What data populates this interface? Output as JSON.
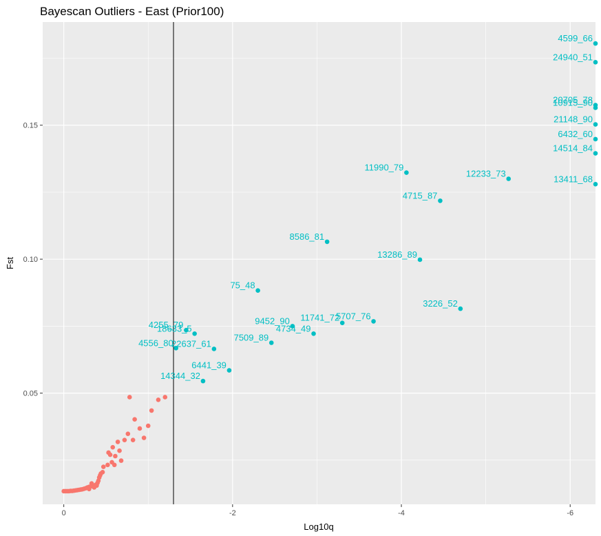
{
  "chart_data": {
    "type": "scatter",
    "title": "Bayescan Outliers - East (Prior100)",
    "xlabel": "Log10q",
    "ylabel": "Fst",
    "xlim": [
      0.25,
      -6.3
    ],
    "ylim": [
      0.0085,
      0.1885
    ],
    "x_reversed": true,
    "x_ticks": [
      0,
      -2,
      -4,
      -6
    ],
    "x_tick_labels": [
      "0",
      "-2",
      "-4",
      "-6"
    ],
    "y_ticks": [
      0.05,
      0.1,
      0.15
    ],
    "y_tick_labels": [
      "0.05",
      "0.10",
      "0.15"
    ],
    "grid": true,
    "vline_x": -1.3,
    "colors": {
      "panel": "#ebebeb",
      "grid": "#ffffff",
      "non_outlier": "#f8766d",
      "outlier": "#00bfc4",
      "vline": "#000000"
    },
    "non_outliers": [
      {
        "x": -0.78,
        "y": 0.0485
      },
      {
        "x": -1.12,
        "y": 0.0475
      },
      {
        "x": -1.2,
        "y": 0.0485
      },
      {
        "x": -1.04,
        "y": 0.0435
      },
      {
        "x": -0.84,
        "y": 0.0402
      },
      {
        "x": -1.0,
        "y": 0.0378
      },
      {
        "x": -0.9,
        "y": 0.0368
      },
      {
        "x": -0.76,
        "y": 0.0348
      },
      {
        "x": -0.82,
        "y": 0.0325
      },
      {
        "x": -0.72,
        "y": 0.0325
      },
      {
        "x": -0.95,
        "y": 0.0333
      },
      {
        "x": -0.64,
        "y": 0.0318
      },
      {
        "x": -0.58,
        "y": 0.0298
      },
      {
        "x": -0.66,
        "y": 0.0285
      },
      {
        "x": -0.53,
        "y": 0.0278
      },
      {
        "x": -0.55,
        "y": 0.027
      },
      {
        "x": -0.61,
        "y": 0.0265
      },
      {
        "x": -0.57,
        "y": 0.0242
      },
      {
        "x": -0.68,
        "y": 0.0248
      },
      {
        "x": -0.6,
        "y": 0.0232
      },
      {
        "x": -0.52,
        "y": 0.0232
      },
      {
        "x": -0.47,
        "y": 0.0225
      },
      {
        "x": -0.46,
        "y": 0.0205
      },
      {
        "x": -0.44,
        "y": 0.02
      },
      {
        "x": -0.43,
        "y": 0.0193
      },
      {
        "x": -0.42,
        "y": 0.0185
      },
      {
        "x": -0.41,
        "y": 0.0173
      },
      {
        "x": -0.4,
        "y": 0.0165
      },
      {
        "x": -0.38,
        "y": 0.0158
      },
      {
        "x": -0.35,
        "y": 0.0155
      },
      {
        "x": -0.32,
        "y": 0.0152
      },
      {
        "x": -0.3,
        "y": 0.015
      },
      {
        "x": -0.28,
        "y": 0.0148
      },
      {
        "x": -0.26,
        "y": 0.0145
      },
      {
        "x": -0.24,
        "y": 0.0143
      },
      {
        "x": -0.22,
        "y": 0.0141
      },
      {
        "x": -0.2,
        "y": 0.014
      },
      {
        "x": -0.18,
        "y": 0.0139
      },
      {
        "x": -0.16,
        "y": 0.0138
      },
      {
        "x": -0.14,
        "y": 0.0137
      },
      {
        "x": -0.12,
        "y": 0.0136
      },
      {
        "x": -0.1,
        "y": 0.0135
      },
      {
        "x": -0.08,
        "y": 0.0135
      },
      {
        "x": -0.06,
        "y": 0.0134
      },
      {
        "x": -0.04,
        "y": 0.0134
      },
      {
        "x": -0.02,
        "y": 0.0134
      },
      {
        "x": 0.0,
        "y": 0.0134
      },
      {
        "x": -0.3,
        "y": 0.0142
      },
      {
        "x": -0.36,
        "y": 0.0148
      },
      {
        "x": -0.33,
        "y": 0.0163
      },
      {
        "x": -0.39,
        "y": 0.0155
      }
    ],
    "outliers": [
      {
        "label": "4599_66",
        "x": -6.3,
        "y": 0.1805
      },
      {
        "label": "24940_51",
        "x": -6.3,
        "y": 0.1735
      },
      {
        "label": "20705_78",
        "x": -6.3,
        "y": 0.1575
      },
      {
        "label": "10915_90",
        "x": -6.3,
        "y": 0.1565
      },
      {
        "label": "21148_90",
        "x": -6.3,
        "y": 0.1503
      },
      {
        "label": "6432_60",
        "x": -6.3,
        "y": 0.1448
      },
      {
        "label": "14514_84",
        "x": -6.3,
        "y": 0.1395
      },
      {
        "label": "13411_68",
        "x": -6.3,
        "y": 0.128
      },
      {
        "label": "11990_79",
        "x": -4.06,
        "y": 0.1323
      },
      {
        "label": "12233_73",
        "x": -5.27,
        "y": 0.13
      },
      {
        "label": "4715_87",
        "x": -4.46,
        "y": 0.1218
      },
      {
        "label": "8586_81",
        "x": -3.12,
        "y": 0.1065
      },
      {
        "label": "13286_89",
        "x": -4.22,
        "y": 0.0998
      },
      {
        "label": "75_48",
        "x": -2.3,
        "y": 0.0883
      },
      {
        "label": "3226_52",
        "x": -4.7,
        "y": 0.0815
      },
      {
        "label": "5707_76",
        "x": -3.67,
        "y": 0.0768
      },
      {
        "label": "11741_72",
        "x": -3.3,
        "y": 0.0762
      },
      {
        "label": "9452_90",
        "x": -2.71,
        "y": 0.075
      },
      {
        "label": "4734_49",
        "x": -2.96,
        "y": 0.0722
      },
      {
        "label": "4255_79",
        "x": -1.45,
        "y": 0.0735
      },
      {
        "label": "18633_5",
        "x": -1.55,
        "y": 0.0722
      },
      {
        "label": "7509_89",
        "x": -2.46,
        "y": 0.0688
      },
      {
        "label": "4556_80",
        "x": -1.33,
        "y": 0.0668
      },
      {
        "label": "22637_61",
        "x": -1.78,
        "y": 0.0665
      },
      {
        "label": "6441_39",
        "x": -1.96,
        "y": 0.0585
      },
      {
        "label": "14344_32",
        "x": -1.65,
        "y": 0.0545
      }
    ]
  }
}
